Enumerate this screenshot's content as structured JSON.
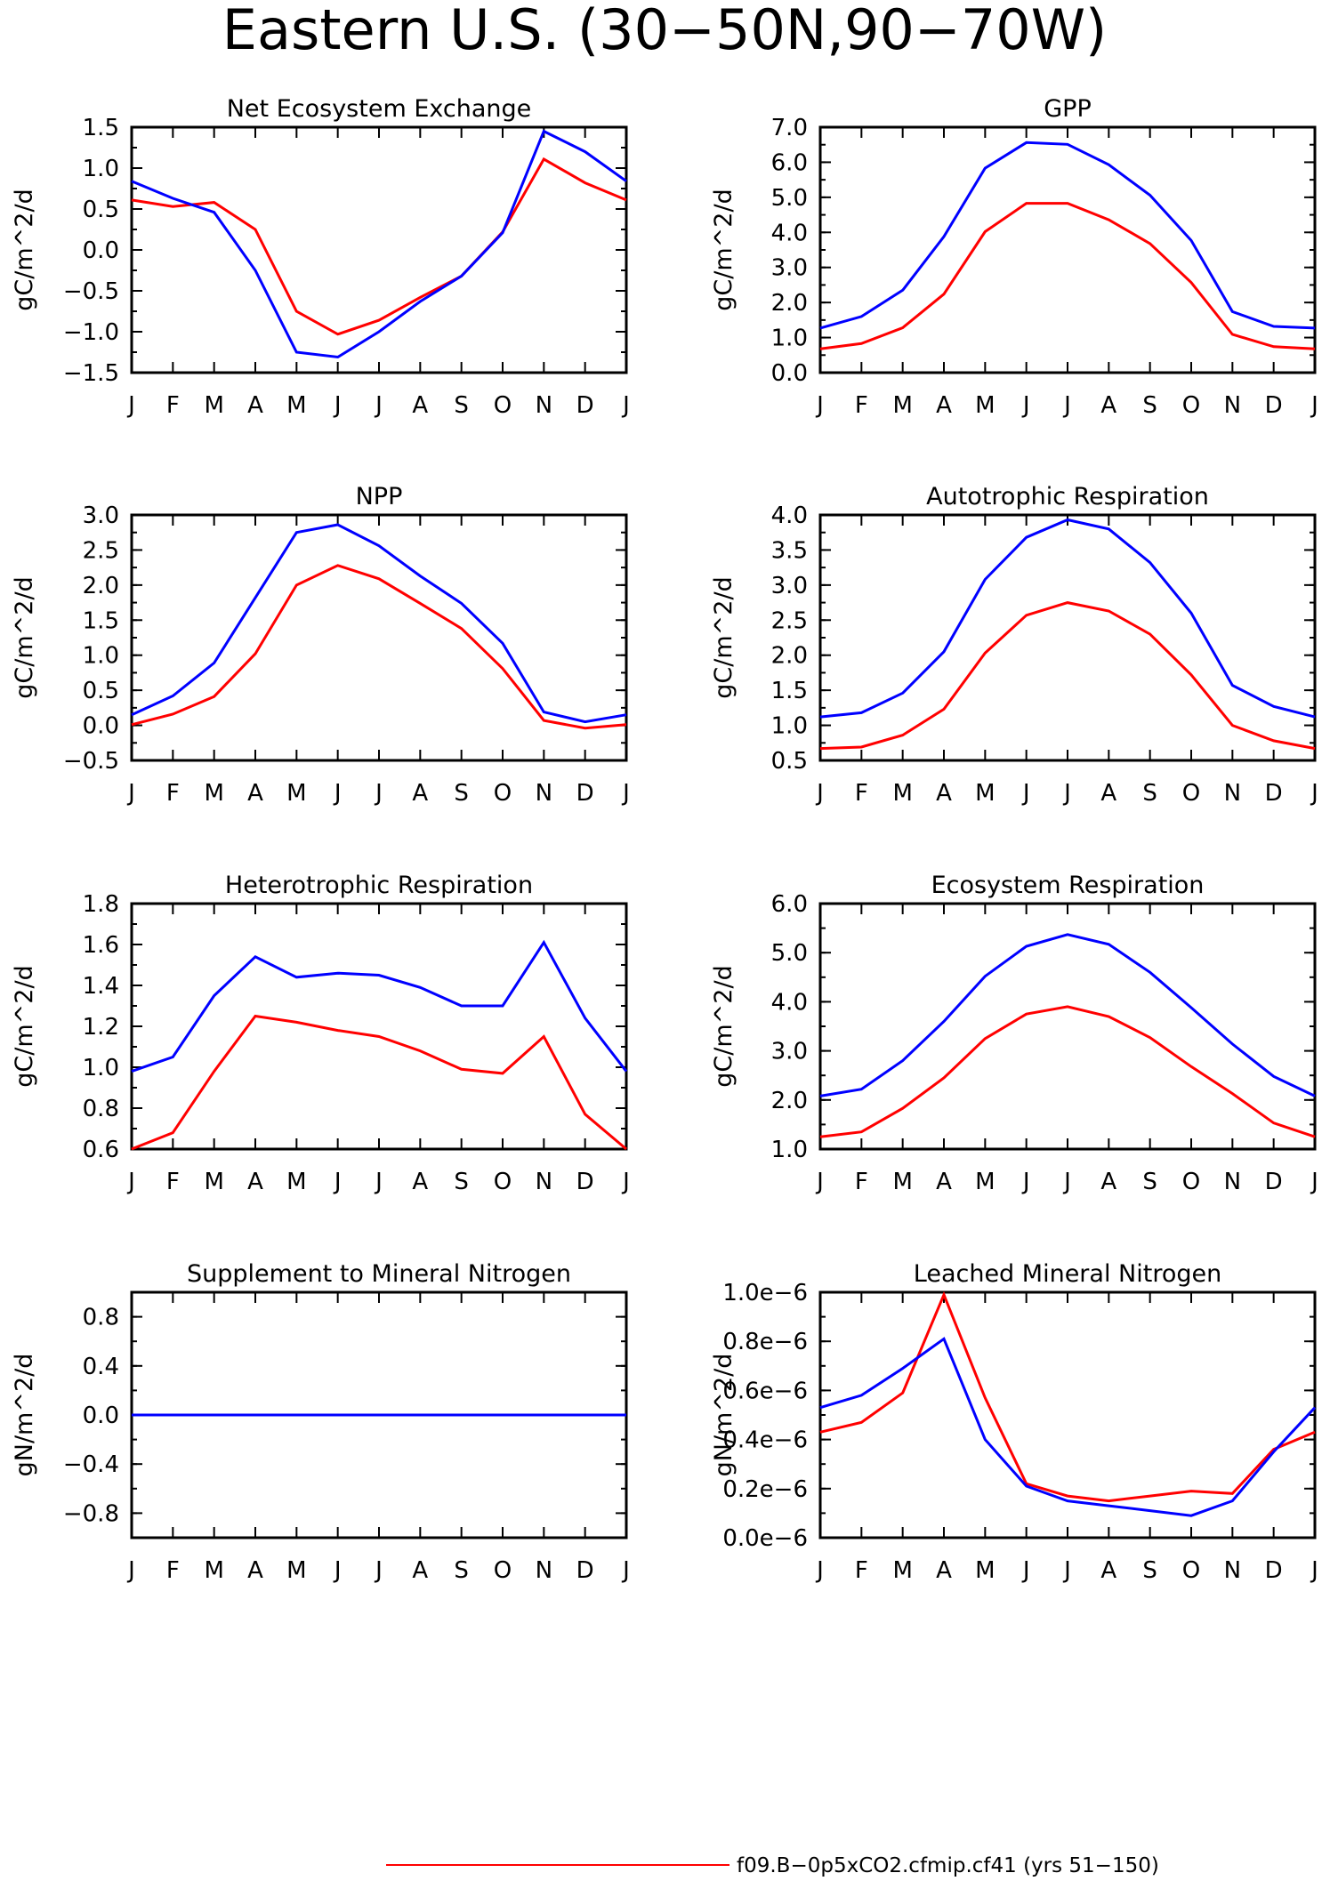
{
  "figure": {
    "title": "Eastern U.S. (30−50N,90−70W)",
    "legend": [
      {
        "label": "f09.B−0p5xCO2.cfmip.cf41 (yrs 51−150)",
        "color": "#ff0000"
      }
    ]
  },
  "chart_data": [
    {
      "type": "line",
      "title": "Net Ecosystem Exchange",
      "ylabel": "gC/m^2/d",
      "categories": [
        "J",
        "F",
        "M",
        "A",
        "M",
        "J",
        "J",
        "A",
        "S",
        "O",
        "N",
        "D",
        "J"
      ],
      "ylim": [
        -1.5,
        1.5
      ],
      "yticks": [
        -1.5,
        -1.0,
        -0.5,
        0.0,
        0.5,
        1.0,
        1.5
      ],
      "ytick_labels": [
        "−1.5",
        "−1.0",
        "−0.5",
        "0.0",
        "0.5",
        "1.0",
        "1.5"
      ],
      "series": [
        {
          "color": "#ff0000",
          "values": [
            0.61,
            0.53,
            0.58,
            0.25,
            -0.75,
            -1.03,
            -0.86,
            -0.58,
            -0.32,
            0.22,
            1.11,
            0.82,
            0.61
          ]
        },
        {
          "color": "#0000ff",
          "values": [
            0.84,
            0.63,
            0.46,
            -0.25,
            -1.25,
            -1.31,
            -1.0,
            -0.63,
            -0.32,
            0.21,
            1.45,
            1.2,
            0.84
          ]
        }
      ]
    },
    {
      "type": "line",
      "title": "GPP",
      "ylabel": "gC/m^2/d",
      "categories": [
        "J",
        "F",
        "M",
        "A",
        "M",
        "J",
        "J",
        "A",
        "S",
        "O",
        "N",
        "D",
        "J"
      ],
      "ylim": [
        0.0,
        7.0
      ],
      "yticks": [
        0,
        1,
        2,
        3,
        4,
        5,
        6,
        7
      ],
      "ytick_labels": [
        "0.0",
        "1.0",
        "2.0",
        "3.0",
        "4.0",
        "5.0",
        "6.0",
        "7.0"
      ],
      "series": [
        {
          "color": "#ff0000",
          "values": [
            0.68,
            0.83,
            1.28,
            2.24,
            4.02,
            4.83,
            4.83,
            4.36,
            3.68,
            2.57,
            1.09,
            0.74,
            0.68
          ]
        },
        {
          "color": "#0000ff",
          "values": [
            1.27,
            1.6,
            2.35,
            3.88,
            5.83,
            6.56,
            6.51,
            5.93,
            5.06,
            3.77,
            1.74,
            1.32,
            1.27
          ]
        }
      ]
    },
    {
      "type": "line",
      "title": "NPP",
      "ylabel": "gC/m^2/d",
      "categories": [
        "J",
        "F",
        "M",
        "A",
        "M",
        "J",
        "J",
        "A",
        "S",
        "O",
        "N",
        "D",
        "J"
      ],
      "ylim": [
        -0.5,
        3.0
      ],
      "yticks": [
        -0.5,
        0.0,
        0.5,
        1.0,
        1.5,
        2.0,
        2.5,
        3.0
      ],
      "ytick_labels": [
        "−0.5",
        "0.0",
        "0.5",
        "1.0",
        "1.5",
        "2.0",
        "2.5",
        "3.0"
      ],
      "series": [
        {
          "color": "#ff0000",
          "values": [
            0.01,
            0.16,
            0.41,
            1.02,
            2.0,
            2.28,
            2.09,
            1.74,
            1.38,
            0.81,
            0.07,
            -0.04,
            0.01
          ]
        },
        {
          "color": "#0000ff",
          "values": [
            0.15,
            0.42,
            0.89,
            1.82,
            2.75,
            2.86,
            2.56,
            2.13,
            1.74,
            1.17,
            0.19,
            0.05,
            0.15
          ]
        }
      ]
    },
    {
      "type": "line",
      "title": "Autotrophic Respiration",
      "ylabel": "gC/m^2/d",
      "categories": [
        "J",
        "F",
        "M",
        "A",
        "M",
        "J",
        "J",
        "A",
        "S",
        "O",
        "N",
        "D",
        "J"
      ],
      "ylim": [
        0.5,
        4.0
      ],
      "yticks": [
        0.5,
        1.0,
        1.5,
        2.0,
        2.5,
        3.0,
        3.5,
        4.0
      ],
      "ytick_labels": [
        "0.5",
        "1.0",
        "1.5",
        "2.0",
        "2.5",
        "3.0",
        "3.5",
        "4.0"
      ],
      "series": [
        {
          "color": "#ff0000",
          "values": [
            0.67,
            0.69,
            0.86,
            1.23,
            2.03,
            2.57,
            2.75,
            2.63,
            2.3,
            1.72,
            1.0,
            0.78,
            0.67
          ]
        },
        {
          "color": "#0000ff",
          "values": [
            1.12,
            1.18,
            1.46,
            2.05,
            3.08,
            3.68,
            3.93,
            3.8,
            3.32,
            2.6,
            1.57,
            1.27,
            1.12
          ]
        }
      ]
    },
    {
      "type": "line",
      "title": "Heterotrophic Respiration",
      "ylabel": "gC/m^2/d",
      "categories": [
        "J",
        "F",
        "M",
        "A",
        "M",
        "J",
        "J",
        "A",
        "S",
        "O",
        "N",
        "D",
        "J"
      ],
      "ylim": [
        0.6,
        1.8
      ],
      "yticks": [
        0.6,
        0.8,
        1.0,
        1.2,
        1.4,
        1.6,
        1.8
      ],
      "ytick_labels": [
        "0.6",
        "0.8",
        "1.0",
        "1.2",
        "1.4",
        "1.6",
        "1.8"
      ],
      "series": [
        {
          "color": "#ff0000",
          "values": [
            0.6,
            0.68,
            0.98,
            1.25,
            1.22,
            1.18,
            1.15,
            1.08,
            0.99,
            0.97,
            1.15,
            0.77,
            0.6
          ]
        },
        {
          "color": "#0000ff",
          "values": [
            0.98,
            1.05,
            1.35,
            1.54,
            1.44,
            1.46,
            1.45,
            1.39,
            1.3,
            1.3,
            1.61,
            1.24,
            0.98
          ]
        }
      ]
    },
    {
      "type": "line",
      "title": "Ecosystem Respiration",
      "ylabel": "gC/m^2/d",
      "categories": [
        "J",
        "F",
        "M",
        "A",
        "M",
        "J",
        "J",
        "A",
        "S",
        "O",
        "N",
        "D",
        "J"
      ],
      "ylim": [
        1.0,
        6.0
      ],
      "yticks": [
        1,
        2,
        3,
        4,
        5,
        6
      ],
      "ytick_labels": [
        "1.0",
        "2.0",
        "3.0",
        "4.0",
        "5.0",
        "6.0"
      ],
      "series": [
        {
          "color": "#ff0000",
          "values": [
            1.25,
            1.35,
            1.83,
            2.45,
            3.25,
            3.75,
            3.9,
            3.7,
            3.27,
            2.68,
            2.13,
            1.53,
            1.25
          ]
        },
        {
          "color": "#0000ff",
          "values": [
            2.08,
            2.22,
            2.8,
            3.6,
            4.52,
            5.13,
            5.37,
            5.17,
            4.6,
            3.88,
            3.14,
            2.48,
            2.08
          ]
        }
      ]
    },
    {
      "type": "line",
      "title": "Supplement to Mineral Nitrogen",
      "ylabel": "gN/m^2/d",
      "categories": [
        "J",
        "F",
        "M",
        "A",
        "M",
        "J",
        "J",
        "A",
        "S",
        "O",
        "N",
        "D",
        "J"
      ],
      "ylim": [
        -1.0,
        1.0
      ],
      "yticks": [
        -0.8,
        -0.4,
        0.0,
        0.4,
        0.8
      ],
      "ytick_labels": [
        "−0.8",
        "−0.4",
        "0.0",
        "0.4",
        "0.8"
      ],
      "series": [
        {
          "color": "#ff0000",
          "values": [
            0,
            0,
            0,
            0,
            0,
            0,
            0,
            0,
            0,
            0,
            0,
            0,
            0
          ]
        },
        {
          "color": "#0000ff",
          "values": [
            0,
            0,
            0,
            0,
            0,
            0,
            0,
            0,
            0,
            0,
            0,
            0,
            0
          ]
        }
      ]
    },
    {
      "type": "line",
      "title": "Leached Mineral Nitrogen",
      "ylabel": "gN/m^2/d",
      "categories": [
        "J",
        "F",
        "M",
        "A",
        "M",
        "J",
        "J",
        "A",
        "S",
        "O",
        "N",
        "D",
        "J"
      ],
      "ylim": [
        0.0,
        1e-06
      ],
      "yticks": [
        0.0,
        2e-07,
        4e-07,
        6e-07,
        8e-07,
        1e-06
      ],
      "ytick_labels": [
        "0.0e−6",
        "0.2e−6",
        "0.4e−6",
        "0.6e−6",
        "0.8e−6",
        "1.0e−6"
      ],
      "series": [
        {
          "color": "#ff0000",
          "values": [
            4.3e-07,
            4.7e-07,
            5.9e-07,
            9.9e-07,
            5.7e-07,
            2.2e-07,
            1.7e-07,
            1.5e-07,
            1.7e-07,
            1.9e-07,
            1.8e-07,
            3.6e-07,
            4.3e-07
          ]
        },
        {
          "color": "#0000ff",
          "values": [
            5.3e-07,
            5.8e-07,
            6.9e-07,
            8.1e-07,
            4e-07,
            2.1e-07,
            1.5e-07,
            1.3e-07,
            1.1e-07,
            9e-08,
            1.5e-07,
            3.5e-07,
            5.3e-07
          ]
        }
      ]
    }
  ]
}
